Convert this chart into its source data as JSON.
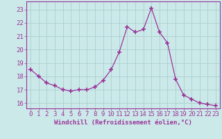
{
  "x": [
    0,
    1,
    2,
    3,
    4,
    5,
    6,
    7,
    8,
    9,
    10,
    11,
    12,
    13,
    14,
    15,
    16,
    17,
    18,
    19,
    20,
    21,
    22,
    23
  ],
  "y": [
    18.5,
    18.0,
    17.5,
    17.3,
    17.0,
    16.9,
    17.0,
    17.0,
    17.2,
    17.7,
    18.5,
    19.8,
    21.7,
    21.3,
    21.5,
    23.1,
    21.3,
    20.5,
    17.8,
    16.6,
    16.3,
    16.0,
    15.9,
    15.8
  ],
  "line_color": "#993399",
  "marker": "+",
  "marker_size": 4,
  "bg_color": "#cce9e9",
  "grid_color": "#aacfcf",
  "xlabel": "Windchill (Refroidissement éolien,°C)",
  "yticks": [
    16,
    17,
    18,
    19,
    20,
    21,
    22,
    23
  ],
  "xticks": [
    0,
    1,
    2,
    3,
    4,
    5,
    6,
    7,
    8,
    9,
    10,
    11,
    12,
    13,
    14,
    15,
    16,
    17,
    18,
    19,
    20,
    21,
    22,
    23
  ],
  "ylim": [
    15.6,
    23.6
  ],
  "xlim": [
    -0.5,
    23.5
  ],
  "tick_fontsize": 6.5,
  "xlabel_fontsize": 6.5
}
